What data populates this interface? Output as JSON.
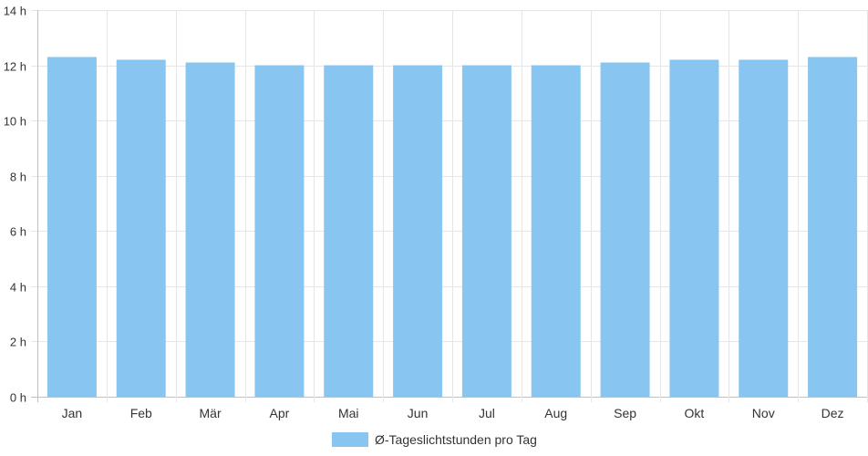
{
  "chart_data": {
    "type": "bar",
    "categories": [
      "Jan",
      "Feb",
      "Mär",
      "Apr",
      "Mai",
      "Jun",
      "Jul",
      "Aug",
      "Sep",
      "Okt",
      "Nov",
      "Dez"
    ],
    "series": [
      {
        "name": "Ø-Tageslichtstunden pro Tag",
        "values": [
          12.3,
          12.2,
          12.1,
          12.0,
          12.0,
          12.0,
          12.0,
          12.0,
          12.1,
          12.2,
          12.2,
          12.3
        ],
        "color": "#88c6f1"
      }
    ],
    "y_ticks": [
      "0 h",
      "2 h",
      "4 h",
      "6 h",
      "8 h",
      "10 h",
      "12 h",
      "14 h"
    ],
    "ylim": [
      0,
      14
    ],
    "grid": true,
    "legend_position": "bottom"
  }
}
